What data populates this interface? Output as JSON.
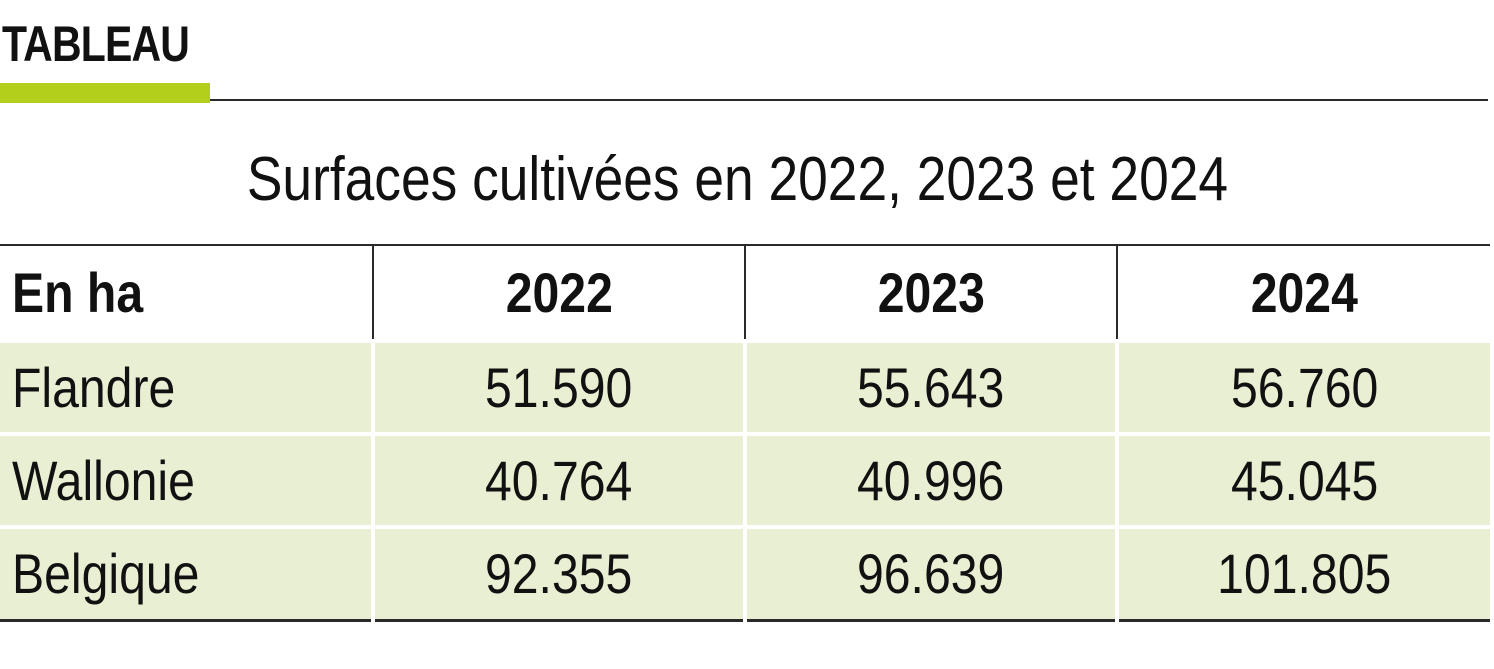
{
  "tag": {
    "label": "TABLEAU",
    "accent_color": "#b3cf1b"
  },
  "title": "Surfaces cultivées en 2022, 2023 et 2024",
  "table": {
    "row_fill_color": "#e9efd2",
    "headers": [
      "En ha",
      "2022",
      "2023",
      "2024"
    ],
    "rows": [
      {
        "label": "Flandre",
        "values": [
          "51.590",
          "55.643",
          "56.760"
        ]
      },
      {
        "label": "Wallonie",
        "values": [
          "40.764",
          "40.996",
          "45.045"
        ]
      },
      {
        "label": "Belgique",
        "values": [
          "92.355",
          "96.639",
          "101.805"
        ]
      }
    ]
  }
}
